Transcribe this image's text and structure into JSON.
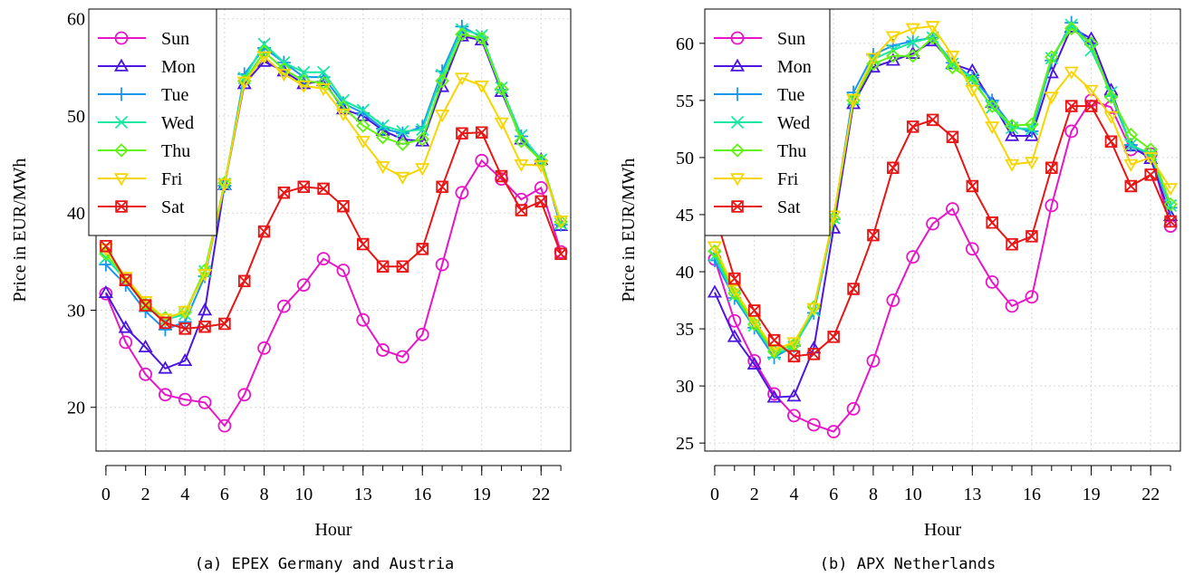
{
  "panels": [
    {
      "caption": "(a) EPEX Germany and Austria",
      "chart_data": {
        "type": "line",
        "xlabel": "Hour",
        "ylabel": "Price in EUR/MWh",
        "xlim": [
          -0.5,
          23.5
        ],
        "ylim": [
          15.5,
          61
        ],
        "xticks": [
          0,
          2,
          4,
          6,
          8,
          10,
          13,
          16,
          19,
          22
        ],
        "yticks": [
          20,
          30,
          40,
          50,
          60
        ],
        "grid": true,
        "legend": "top-left",
        "x": [
          0,
          1,
          2,
          3,
          4,
          5,
          6,
          7,
          8,
          9,
          10,
          11,
          12,
          13,
          14,
          15,
          16,
          17,
          18,
          19,
          20,
          21,
          22,
          23
        ],
        "series": [
          {
            "name": "Sun",
            "marker": "circle",
            "color": "#E815C8",
            "values": [
              31.7,
              26.7,
              23.4,
              21.3,
              20.8,
              20.5,
              18.1,
              21.3,
              26.1,
              30.4,
              32.6,
              35.3,
              34.1,
              29.0,
              25.9,
              25.2,
              27.5,
              34.7,
              42.1,
              45.4,
              43.5,
              41.4,
              42.6,
              36.0
            ]
          },
          {
            "name": "Mon",
            "marker": "triangle-up",
            "color": "#4B16E0",
            "values": [
              31.8,
              28.2,
              26.2,
              24.0,
              24.8,
              30.0,
              42.9,
              53.3,
              55.6,
              54.6,
              53.3,
              53.6,
              50.7,
              50.0,
              48.5,
              47.6,
              47.4,
              53.0,
              58.2,
              57.8,
              52.5,
              47.6,
              45.5,
              38.7
            ]
          },
          {
            "name": "Tue",
            "marker": "plus",
            "color": "#1A96F0",
            "values": [
              34.7,
              32.6,
              29.9,
              28.0,
              28.8,
              33.5,
              42.8,
              54.3,
              57.0,
              55.5,
              54.0,
              54.0,
              51.3,
              50.3,
              48.7,
              48.2,
              48.9,
              54.6,
              59.2,
              58.1,
              52.7,
              47.9,
              45.4,
              38.8
            ]
          },
          {
            "name": "Wed",
            "marker": "x",
            "color": "#17E8A0",
            "values": [
              35.4,
              33.1,
              30.4,
              29.0,
              29.6,
              34.0,
              43.0,
              53.9,
              57.4,
              55.5,
              54.5,
              54.5,
              51.6,
              50.6,
              49.0,
              48.4,
              48.6,
              54.2,
              58.9,
              58.3,
              52.9,
              48.0,
              45.5,
              38.9
            ]
          },
          {
            "name": "Thu",
            "marker": "diamond",
            "color": "#62F212",
            "values": [
              35.8,
              33.3,
              30.6,
              29.2,
              29.8,
              34.1,
              43.1,
              53.6,
              56.6,
              54.8,
              53.6,
              53.4,
              50.9,
              49.0,
              47.8,
              47.1,
              47.6,
              53.6,
              58.4,
              58.0,
              52.8,
              47.4,
              45.4,
              39.1
            ]
          },
          {
            "name": "Fri",
            "marker": "triangle-down",
            "color": "#F7D500",
            "values": [
              36.3,
              33.4,
              30.9,
              29.1,
              29.9,
              33.7,
              43.0,
              53.5,
              56.1,
              54.3,
              53.1,
              52.8,
              50.2,
              47.4,
              44.8,
              43.7,
              44.6,
              50.1,
              53.9,
              53.1,
              49.3,
              45.0,
              44.9,
              39.2
            ]
          },
          {
            "name": "Sat",
            "marker": "square-x",
            "color": "#E81515",
            "values": [
              36.6,
              33.1,
              30.5,
              28.7,
              28.1,
              28.3,
              28.6,
              33.0,
              38.1,
              42.1,
              42.7,
              42.5,
              40.7,
              36.8,
              34.5,
              34.5,
              36.3,
              42.7,
              48.2,
              48.3,
              43.8,
              40.3,
              41.2,
              35.8
            ]
          }
        ]
      }
    },
    {
      "caption": "(b) APX Netherlands",
      "chart_data": {
        "type": "line",
        "xlabel": "Hour",
        "ylabel": "Price in EUR/MWh",
        "xlim": [
          -0.5,
          23.5
        ],
        "ylim": [
          24.3,
          63
        ],
        "xticks": [
          0,
          2,
          4,
          6,
          8,
          10,
          13,
          16,
          19,
          22
        ],
        "yticks": [
          25,
          30,
          35,
          40,
          45,
          50,
          55,
          60
        ],
        "grid": true,
        "legend": "top-left",
        "x": [
          0,
          1,
          2,
          3,
          4,
          5,
          6,
          7,
          8,
          9,
          10,
          11,
          12,
          13,
          14,
          15,
          16,
          17,
          18,
          19,
          20,
          21,
          22,
          23
        ],
        "series": [
          {
            "name": "Sun",
            "marker": "circle",
            "color": "#E815C8",
            "values": [
              41.1,
              35.7,
              32.2,
              29.3,
              27.4,
              26.6,
              26.0,
              28.0,
              32.2,
              37.5,
              41.3,
              44.2,
              45.5,
              42.0,
              39.1,
              37.0,
              37.8,
              45.8,
              52.3,
              55.0,
              54.4,
              50.7,
              50.3,
              44.0
            ]
          },
          {
            "name": "Mon",
            "marker": "triangle-up",
            "color": "#4B16E0",
            "values": [
              38.2,
              34.3,
              31.9,
              29.0,
              29.1,
              33.3,
              43.8,
              54.7,
              57.9,
              58.5,
              59.1,
              60.2,
              58.2,
              57.6,
              54.8,
              51.9,
              51.9,
              57.4,
              61.4,
              60.4,
              55.9,
              51.0,
              49.9,
              44.9
            ]
          },
          {
            "name": "Tue",
            "marker": "plus",
            "color": "#1A96F0",
            "values": [
              41.0,
              37.7,
              35.1,
              32.5,
              33.5,
              36.4,
              44.6,
              55.7,
              59.0,
              59.8,
              60.2,
              60.5,
              58.3,
              57.0,
              55.0,
              52.7,
              52.3,
              58.5,
              61.8,
              59.9,
              55.4,
              51.1,
              50.2,
              45.6
            ]
          },
          {
            "name": "Wed",
            "marker": "x",
            "color": "#17E8A0",
            "values": [
              41.4,
              37.9,
              35.3,
              32.8,
              33.4,
              36.6,
              44.7,
              55.1,
              58.6,
              59.4,
              60.1,
              60.5,
              58.2,
              56.9,
              54.4,
              52.6,
              52.5,
              58.7,
              61.6,
              59.4,
              55.7,
              51.1,
              50.3,
              45.8
            ]
          },
          {
            "name": "Thu",
            "marker": "diamond",
            "color": "#62F212",
            "values": [
              41.8,
              38.1,
              35.4,
              33.0,
              33.6,
              36.9,
              44.7,
              55.0,
              58.2,
              58.9,
              58.9,
              60.5,
              57.9,
              56.7,
              54.5,
              52.8,
              52.9,
              58.8,
              61.3,
              60.0,
              55.3,
              52.0,
              50.7,
              45.9
            ]
          },
          {
            "name": "Fri",
            "marker": "triangle-down",
            "color": "#F7D500",
            "values": [
              42.2,
              38.4,
              35.7,
              33.2,
              33.8,
              36.8,
              44.9,
              55.1,
              58.7,
              60.6,
              61.3,
              61.5,
              58.9,
              55.9,
              52.7,
              49.4,
              49.6,
              55.3,
              57.5,
              55.9,
              53.6,
              49.4,
              50.0,
              47.3
            ]
          },
          {
            "name": "Sat",
            "marker": "square-x",
            "color": "#E81515",
            "values": [
              45.1,
              39.4,
              36.6,
              34.0,
              32.6,
              32.8,
              34.3,
              38.5,
              43.2,
              49.1,
              52.7,
              53.3,
              51.8,
              47.5,
              44.3,
              42.4,
              43.1,
              49.1,
              54.5,
              54.5,
              51.4,
              47.5,
              48.5,
              44.4
            ]
          }
        ]
      }
    }
  ]
}
